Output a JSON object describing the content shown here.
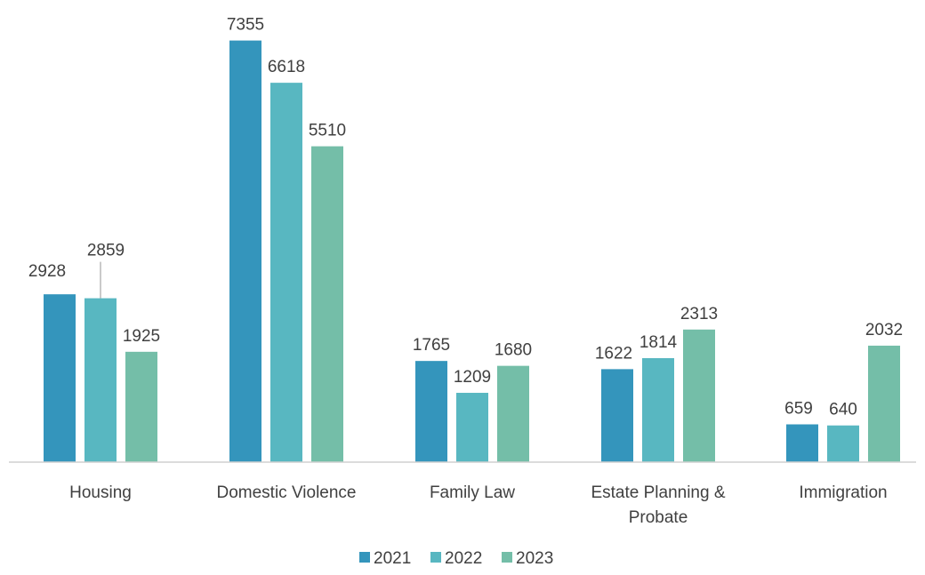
{
  "chart_data": {
    "type": "bar",
    "title": "",
    "xlabel": "",
    "ylabel": "",
    "ylim": [
      0,
      7800
    ],
    "grid": false,
    "legend_position": "bottom",
    "categories": [
      [
        "Housing"
      ],
      [
        "Domestic Violence"
      ],
      [
        "Family Law"
      ],
      [
        "Estate Planning &",
        "Probate"
      ],
      [
        "Immigration"
      ]
    ],
    "series": [
      {
        "name": "2021",
        "color": "#3495BC",
        "values": [
          2928,
          7355,
          1765,
          1622,
          659
        ]
      },
      {
        "name": "2022",
        "color": "#58B7C1",
        "values": [
          2859,
          6618,
          1209,
          1814,
          640
        ]
      },
      {
        "name": "2023",
        "color": "#74BEA8",
        "values": [
          1925,
          5510,
          1680,
          2313,
          2032
        ]
      }
    ]
  }
}
